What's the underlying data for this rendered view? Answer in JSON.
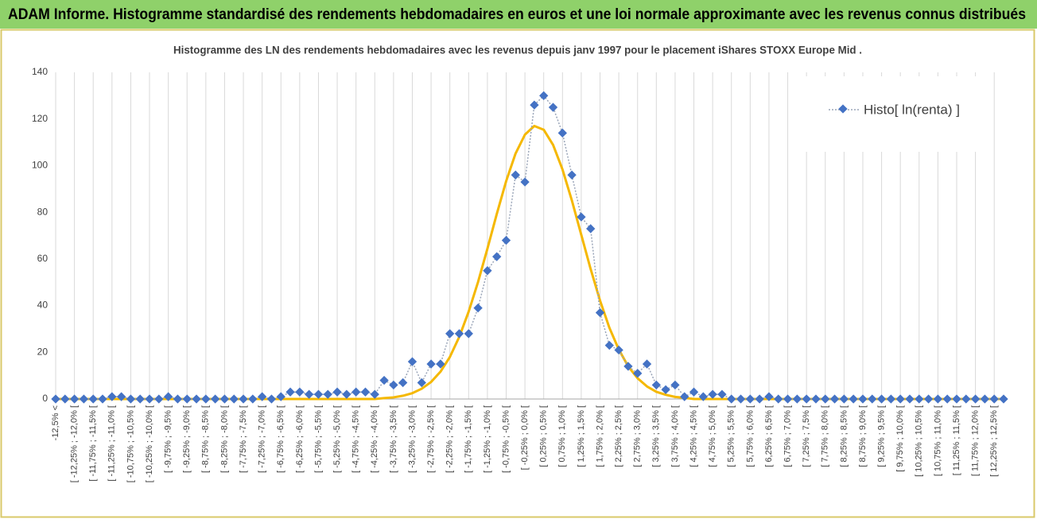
{
  "header": {
    "title": "ADAM Informe. Histogramme standardisé des rendements hebdomadaires en euros et une loi normale approximante avec les revenus connus distribués"
  },
  "chart_data": {
    "type": "line",
    "title": "Histogramme des LN des rendements hebdomadaires avec les revenus depuis janv 1997 pour le placement iShares STOXX Europe Mid .",
    "categories": [
      "-12,5% <",
      null,
      "[ -12,25% ; -12,0% [",
      null,
      "[ -11,75% ; -11,5% [",
      null,
      "[ -11,25% ; -11,0% [",
      null,
      "[ -10,75% ; -10,5% [",
      null,
      "[ -10,25% ; -10,0% [",
      null,
      "[ -9,75% ; -9,5% [",
      null,
      "[ -9,25% ; -9,0% [",
      null,
      "[ -8,75% ; -8,5% [",
      null,
      "[ -8,25% ; -8,0% [",
      null,
      "[ -7,75% ; -7,5% [",
      null,
      "[ -7,25% ; -7,0% [",
      null,
      "[ -6,75% ; -6,5% [",
      null,
      "[ -6,25% ; -6,0% [",
      null,
      "[ -5,75% ; -5,5% [",
      null,
      "[ -5,25% ; -5,0% [",
      null,
      "[ -4,75% ; -4,5% [",
      null,
      "[ -4,25% ; -4,0% [",
      null,
      "[ -3,75% ; -3,5% [",
      null,
      "[ -3,25% ; -3,0% [",
      null,
      "[ -2,75% ; -2,5% [",
      null,
      "[ -2,25% ; -2,0% [",
      null,
      "[ -1,75% ; -1,5% [",
      null,
      "[ -1,25% ; -1,0% [",
      null,
      "[ -0,75% ; -0,5% [",
      null,
      "[ -0,25% ; 0,0% [",
      null,
      "[ 0,25% ; 0,5% [",
      null,
      "[ 0,75% ; 1,0% [",
      null,
      "[ 1,25% ; 1,5% [",
      null,
      "[ 1,75% ; 2,0% [",
      null,
      "[ 2,25% ; 2,5% [",
      null,
      "[ 2,75% ; 3,0% [",
      null,
      "[ 3,25% ; 3,5% [",
      null,
      "[ 3,75% ; 4,0% [",
      null,
      "[ 4,25% ; 4,5% [",
      null,
      "[ 4,75% ; 5,0% [",
      null,
      "[ 5,25% ; 5,5% [",
      null,
      "[ 5,75% ; 6,0% [",
      null,
      "[ 6,25% ; 6,5% [",
      null,
      "[ 6,75% ; 7,0% [",
      null,
      "[ 7,25% ; 7,5% [",
      null,
      "[ 7,75% ; 8,0% [",
      null,
      "[ 8,25% ; 8,5% [",
      null,
      "[ 8,75% ; 9,0% [",
      null,
      "[ 9,25% ; 9,5% [",
      null,
      "[ 9,75% ; 10,0% [",
      null,
      "[ 10,25% ; 10,5% [",
      null,
      "[ 10,75% ; 11,0% [",
      null,
      "[ 11,25% ; 11,5% [",
      null,
      "[ 11,75% ; 12,0% [",
      null,
      "[ 12,25% ; 12,5% [",
      null
    ],
    "series": [
      {
        "name": "Histo[ ln(renta) ]",
        "color": "#4472c4",
        "values": [
          0,
          0,
          0,
          0,
          0,
          0,
          1,
          1,
          0,
          0,
          0,
          0,
          1,
          0,
          0,
          0,
          0,
          0,
          0,
          0,
          0,
          0,
          1,
          0,
          1,
          3,
          3,
          2,
          2,
          2,
          3,
          2,
          3,
          3,
          2,
          8,
          6,
          7,
          16,
          7,
          15,
          15,
          28,
          28,
          28,
          39,
          55,
          61,
          68,
          96,
          93,
          126,
          130,
          125,
          114,
          96,
          78,
          73,
          37,
          23,
          21,
          14,
          11,
          15,
          6,
          4,
          6,
          1,
          3,
          1,
          2,
          2,
          0,
          0,
          0,
          0,
          1,
          0,
          0,
          0,
          0,
          0,
          0,
          0,
          0,
          0,
          0,
          0,
          0,
          0,
          0,
          0,
          0,
          0,
          0,
          0,
          0,
          0,
          0,
          0,
          0,
          0
        ]
      }
    ],
    "fit_curve": {
      "color": "#f5b800",
      "values": [
        0,
        0,
        0,
        0,
        0,
        0,
        0,
        0,
        0,
        0,
        0,
        0,
        0,
        0,
        0,
        0,
        0,
        0,
        0,
        0,
        0,
        0,
        0,
        0,
        0,
        0,
        0,
        0,
        0,
        0,
        0,
        0,
        0,
        0,
        0,
        0.4,
        0.7,
        1.4,
        2.5,
        4.4,
        7.3,
        11.7,
        18.0,
        26.6,
        37.4,
        50.1,
        64.4,
        79.3,
        93.4,
        105.2,
        113.3,
        117,
        115.4,
        108.9,
        98.4,
        85.1,
        70.4,
        55.7,
        42.2,
        30.5,
        21.2,
        14.0,
        8.9,
        5.4,
        3.1,
        1.8,
        0.9,
        0.5,
        0,
        0,
        0,
        0,
        0,
        0,
        0,
        0,
        0,
        0,
        0,
        0,
        0,
        0,
        0,
        0,
        0,
        0,
        0,
        0,
        0,
        0,
        0,
        0,
        0,
        0,
        0,
        0,
        0,
        0,
        0,
        0,
        0,
        0
      ]
    },
    "ylim": [
      0,
      140
    ],
    "yticks": [
      0,
      20,
      40,
      60,
      80,
      100,
      120,
      140
    ],
    "grid": "x",
    "legend": "top-right"
  }
}
